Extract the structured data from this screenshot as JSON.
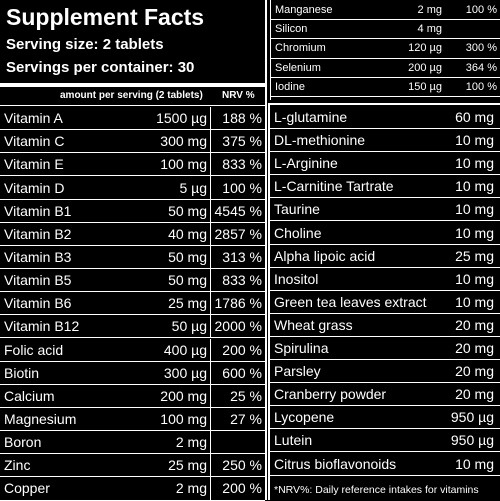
{
  "header": {
    "title": "Supplement Facts",
    "serving_size": "Serving size: 2 tablets",
    "servings_per_container": "Servings per container: 30"
  },
  "table_header": {
    "amount": "amount per serving (2 tablets)",
    "nrv": "NRV %"
  },
  "left_rows": [
    {
      "name": "Vitamin A",
      "amount": "1500 µg",
      "nrv": "188 %"
    },
    {
      "name": "Vitamin C",
      "amount": "300 mg",
      "nrv": "375 %"
    },
    {
      "name": "Vitamin E",
      "amount": "100 mg",
      "nrv": "833 %"
    },
    {
      "name": "Vitamin D",
      "amount": "5 µg",
      "nrv": "100 %"
    },
    {
      "name": "Vitamin B1",
      "amount": "50 mg",
      "nrv": "4545 %"
    },
    {
      "name": "Vitamin B2",
      "amount": "40 mg",
      "nrv": "2857 %"
    },
    {
      "name": "Vitamin B3",
      "amount": "50 mg",
      "nrv": "313 %"
    },
    {
      "name": "Vitamin B5",
      "amount": "50 mg",
      "nrv": "833 %"
    },
    {
      "name": "Vitamin B6",
      "amount": "25 mg",
      "nrv": "1786 %"
    },
    {
      "name": "Vitamin B12",
      "amount": "50 µg",
      "nrv": "2000 %"
    },
    {
      "name": "Folic acid",
      "amount": "400 µg",
      "nrv": "200 %"
    },
    {
      "name": "Biotin",
      "amount": "300 µg",
      "nrv": "600 %"
    },
    {
      "name": "Calcium",
      "amount": "200 mg",
      "nrv": "25 %"
    },
    {
      "name": "Magnesium",
      "amount": "100 mg",
      "nrv": "27 %"
    },
    {
      "name": "Boron",
      "amount": "2 mg"
    },
    {
      "name": "Zinc",
      "amount": "25 mg",
      "nrv": "250 %"
    },
    {
      "name": "Copper",
      "amount": "2 mg",
      "nrv": "200 %"
    }
  ],
  "right_top_rows": [
    {
      "name": "Manganese",
      "amount": "2 mg",
      "nrv": "100 %"
    },
    {
      "name": "Silicon",
      "amount": "4 mg"
    },
    {
      "name": "Chromium",
      "amount": "120 µg",
      "nrv": "300 %"
    },
    {
      "name": "Selenium",
      "amount": "200 µg",
      "nrv": "364 %"
    },
    {
      "name": "Iodine",
      "amount": "150 µg",
      "nrv": "100 %"
    }
  ],
  "right_rows": [
    {
      "name": "L-glutamine",
      "amount": "60 mg"
    },
    {
      "name": "DL-methionine",
      "amount": "10 mg"
    },
    {
      "name": "L-Arginine",
      "amount": "10 mg"
    },
    {
      "name": "L-Carnitine Tartrate",
      "amount": "10 mg"
    },
    {
      "name": "Taurine",
      "amount": "10 mg"
    },
    {
      "name": "Choline",
      "amount": "10 mg"
    },
    {
      "name": "Alpha lipoic acid",
      "amount": "25 mg"
    },
    {
      "name": "Inositol",
      "amount": "10 mg"
    },
    {
      "name": "Green tea leaves extract",
      "amount": "10 mg"
    },
    {
      "name": "Wheat grass",
      "amount": "20 mg"
    },
    {
      "name": "Spirulina",
      "amount": "20 mg"
    },
    {
      "name": "Parsley",
      "amount": "20 mg"
    },
    {
      "name": "Cranberry powder",
      "amount": "20 mg"
    },
    {
      "name": "Lycopene",
      "amount": "950 µg"
    },
    {
      "name": "Lutein",
      "amount": "950 µg"
    },
    {
      "name": "Citrus bioflavonoids",
      "amount": "10 mg"
    }
  ],
  "footnote": "*NRV%: Daily reference intakes for vitamins"
}
